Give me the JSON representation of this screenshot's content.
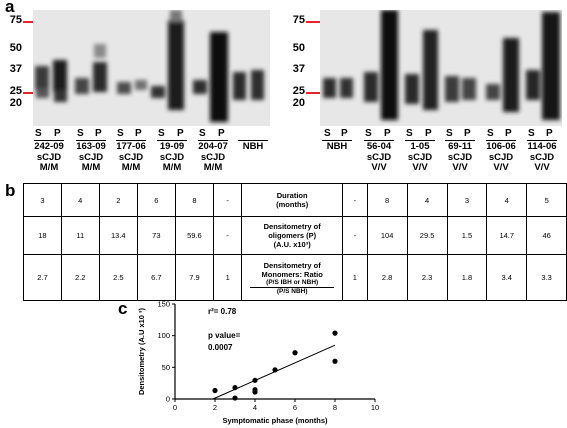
{
  "panels": {
    "a": "a",
    "b": "b",
    "c": "c"
  },
  "mw_markers": {
    "left": [
      "75",
      "50",
      "37",
      "25",
      "20"
    ],
    "right": [
      "75",
      "50",
      "37",
      "25",
      "20"
    ],
    "marker_color": "#e8242b"
  },
  "left_blot": {
    "samples": [
      {
        "lines": [
          "242-09",
          "sCJD",
          "M/M"
        ],
        "s": "S",
        "p": "P"
      },
      {
        "lines": [
          "163-09",
          "sCJD",
          "M/M"
        ],
        "s": "S",
        "p": "P"
      },
      {
        "lines": [
          "177-06",
          "sCJD",
          "M/M"
        ],
        "s": "S",
        "p": "P"
      },
      {
        "lines": [
          "19-09",
          "sCJD",
          "M/M"
        ],
        "s": "S",
        "p": "P"
      },
      {
        "lines": [
          "204-07",
          "sCJD",
          "M/M"
        ],
        "s": "S",
        "p": "P"
      },
      {
        "lines": [
          "NBH",
          "",
          ""
        ],
        "s": "",
        "p": ""
      }
    ]
  },
  "right_blot": {
    "samples": [
      {
        "lines": [
          "NBH",
          "",
          ""
        ],
        "s": "S",
        "p": "P"
      },
      {
        "lines": [
          "56-04",
          "sCJD",
          "V/V"
        ],
        "s": "S",
        "p": "P"
      },
      {
        "lines": [
          "1-05",
          "sCJD",
          "V/V"
        ],
        "s": "S",
        "p": "P"
      },
      {
        "lines": [
          "69-11",
          "sCJD",
          "V/V"
        ],
        "s": "S",
        "p": "P"
      },
      {
        "lines": [
          "106-06",
          "sCJD",
          "V/V"
        ],
        "s": "S",
        "p": "P"
      },
      {
        "lines": [
          "114-06",
          "sCJD",
          "V/V"
        ],
        "s": "S",
        "p": "P"
      }
    ]
  },
  "table": {
    "rows": [
      {
        "header_lines": [
          "Duration",
          "(months)"
        ],
        "left": [
          "3",
          "4",
          "2",
          "6",
          "8",
          "-"
        ],
        "right": [
          "-",
          "8",
          "4",
          "3",
          "4",
          "5"
        ]
      },
      {
        "header_lines": [
          "Densitometry of",
          "oligomers (P)",
          "(A.U. x10³)"
        ],
        "left": [
          "18",
          "11",
          "13.4",
          "73",
          "59.6",
          "-"
        ],
        "right": [
          "-",
          "104",
          "29.5",
          "1.5",
          "14.7",
          "46"
        ]
      },
      {
        "header_lines": [
          "Densitometry of",
          "Monomers: Ratio",
          "(P/S IBH or NBH)",
          "(P/S NBH)"
        ],
        "left": [
          "2.7",
          "2.2",
          "2.5",
          "6.7",
          "7.9",
          "1"
        ],
        "right": [
          "1",
          "2.8",
          "2.3",
          "1.8",
          "3.4",
          "3.3"
        ]
      }
    ]
  },
  "chart_data": {
    "type": "scatter",
    "title": "",
    "xlabel": "Symptomatic phase (months)",
    "ylabel": "Densitometry (A.U x10 ³)",
    "xlim": [
      0,
      10
    ],
    "ylim": [
      0,
      150
    ],
    "x_ticks": [
      "0",
      "2",
      "4",
      "6",
      "8",
      "10"
    ],
    "y_ticks": [
      "0",
      "50",
      "100",
      "150"
    ],
    "annotation_r2": "r²= 0.78",
    "annotation_p_label": "p value=",
    "annotation_p_value": "0.0007",
    "points": [
      {
        "x": 2,
        "y": 13.4
      },
      {
        "x": 3,
        "y": 18
      },
      {
        "x": 3,
        "y": 1.5
      },
      {
        "x": 4,
        "y": 11
      },
      {
        "x": 4,
        "y": 14.7
      },
      {
        "x": 4,
        "y": 29.5
      },
      {
        "x": 5,
        "y": 46
      },
      {
        "x": 6,
        "y": 73
      },
      {
        "x": 8,
        "y": 59.6
      },
      {
        "x": 8,
        "y": 104
      }
    ],
    "regression": {
      "x1": 1.9,
      "y1": 0,
      "x2": 8,
      "y2": 85
    }
  }
}
